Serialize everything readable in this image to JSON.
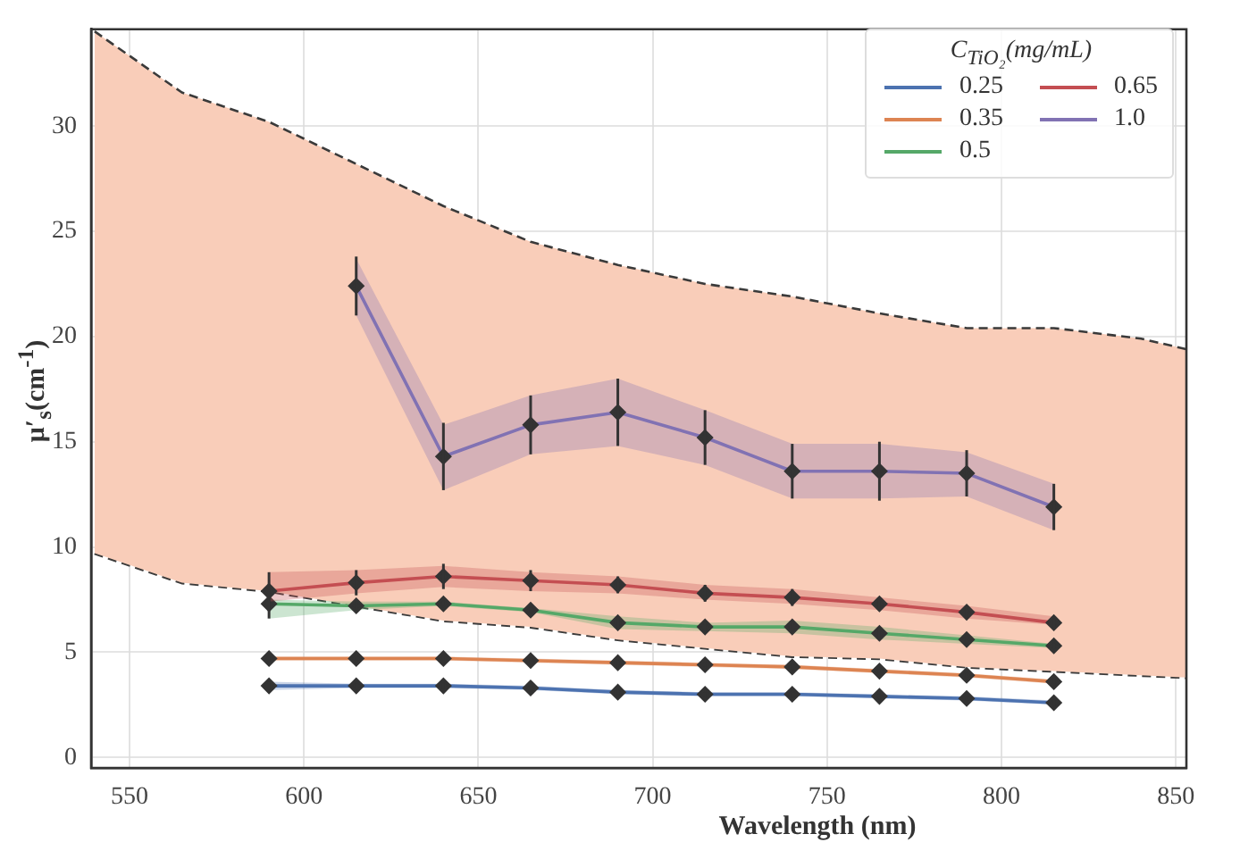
{
  "chart_data": {
    "type": "line",
    "xlabel": "Wavelength (nm)",
    "ylabel": "μ′$_{s}$(cm$^{-1}$)",
    "legend_title": "C$_{TiO₂}$(mg/mL)",
    "legend": "top right",
    "grid": true,
    "marker": "diamond",
    "x": [
      590,
      615,
      640,
      665,
      690,
      715,
      740,
      765,
      790,
      815
    ],
    "xlim": [
      539,
      853
    ],
    "xticks": [
      550,
      600,
      650,
      700,
      750,
      800,
      850
    ],
    "ylim": [
      -0.5,
      34.6
    ],
    "yticks": [
      0,
      5,
      10,
      15,
      20,
      25,
      30
    ],
    "series": [
      {
        "type": "line",
        "color": "#3a3a3a",
        "line_style": "dashed",
        "marker": "none",
        "x": [
          540,
          565,
          590,
          615,
          640,
          665,
          690,
          715,
          740,
          765,
          790,
          815,
          840,
          853
        ],
        "values": [
          9.7,
          8.3,
          7.9,
          7.2,
          6.5,
          6.2,
          5.6,
          5.2,
          4.8,
          4.7,
          4.3,
          4.1,
          3.9,
          3.8
        ]
      },
      {
        "type": "area",
        "color": "#f9cdb9",
        "line_style": "dashed",
        "marker": "none",
        "x": [
          540,
          565,
          590,
          615,
          640,
          665,
          690,
          715,
          740,
          765,
          790,
          815,
          840,
          853
        ],
        "values": [
          34.5,
          31.6,
          30.2,
          28.2,
          26.2,
          24.5,
          23.4,
          22.5,
          21.9,
          21.1,
          20.4,
          20.4,
          19.9,
          19.4
        ]
      },
      {
        "name": "0.25",
        "color": "#4c72b0",
        "values": [
          3.4,
          3.4,
          3.4,
          3.3,
          3.1,
          3.0,
          3.0,
          2.9,
          2.8,
          2.6
        ],
        "errors": [
          0.2,
          0.1,
          0.1,
          0.1,
          0.1,
          0.1,
          0.1,
          0.1,
          0.1,
          0.1
        ],
        "lower": [
          3.2,
          3.3,
          3.3,
          3.2,
          3.0,
          2.9,
          2.9,
          2.8,
          2.7,
          2.5
        ],
        "upper": [
          3.6,
          3.5,
          3.5,
          3.4,
          3.2,
          3.1,
          3.1,
          3.0,
          2.9,
          2.7
        ]
      },
      {
        "name": "0.35",
        "color": "#dd8452",
        "values": [
          4.7,
          4.7,
          4.7,
          4.6,
          4.5,
          4.4,
          4.3,
          4.1,
          3.9,
          3.6
        ],
        "errors": [
          0.1,
          0.1,
          0.1,
          0.1,
          0.1,
          0.1,
          0.1,
          0.1,
          0.1,
          0.1
        ],
        "lower": [
          4.6,
          4.6,
          4.6,
          4.5,
          4.4,
          4.3,
          4.2,
          4.0,
          3.8,
          3.5
        ],
        "upper": [
          4.8,
          4.8,
          4.8,
          4.7,
          4.6,
          4.5,
          4.4,
          4.2,
          4.0,
          3.7
        ]
      },
      {
        "name": "0.5",
        "color": "#55a868",
        "values": [
          7.3,
          7.2,
          7.3,
          7.0,
          6.4,
          6.2,
          6.2,
          5.9,
          5.6,
          5.3
        ],
        "errors": [
          0.7,
          0.2,
          0.1,
          0.1,
          0.3,
          0.3,
          0.3,
          0.3,
          0.2,
          0.1
        ],
        "lower": [
          6.6,
          7.0,
          7.2,
          6.9,
          6.1,
          6.0,
          5.9,
          5.6,
          5.4,
          5.2
        ],
        "upper": [
          7.5,
          7.4,
          7.4,
          7.1,
          6.7,
          6.4,
          6.5,
          6.2,
          5.8,
          5.4
        ]
      },
      {
        "name": "0.65",
        "color": "#c44e52",
        "values": [
          7.9,
          8.3,
          8.6,
          8.4,
          8.2,
          7.8,
          7.6,
          7.3,
          6.9,
          6.4
        ],
        "errors": [
          0.9,
          0.6,
          0.6,
          0.5,
          0.4,
          0.4,
          0.4,
          0.3,
          0.3,
          0.2
        ],
        "lower": [
          7.4,
          7.8,
          8.1,
          7.9,
          7.8,
          7.5,
          7.3,
          7.0,
          6.6,
          6.3
        ],
        "upper": [
          8.8,
          8.9,
          9.1,
          8.8,
          8.6,
          8.2,
          8.0,
          7.6,
          7.2,
          6.7
        ]
      },
      {
        "name": "1.0",
        "color": "#8172b3",
        "x": [
          615,
          640,
          665,
          690,
          715,
          740,
          765,
          790,
          815
        ],
        "values": [
          22.4,
          14.3,
          15.8,
          16.4,
          15.2,
          13.6,
          13.6,
          13.5,
          11.9
        ],
        "errors": [
          1.4,
          1.6,
          1.4,
          1.6,
          1.3,
          1.3,
          1.4,
          1.1,
          1.1
        ],
        "lower": [
          21.0,
          12.7,
          14.4,
          14.8,
          13.9,
          12.3,
          12.3,
          12.4,
          10.8
        ],
        "upper": [
          23.7,
          15.8,
          17.2,
          18.0,
          16.5,
          14.9,
          14.9,
          14.5,
          13.0
        ]
      }
    ]
  }
}
